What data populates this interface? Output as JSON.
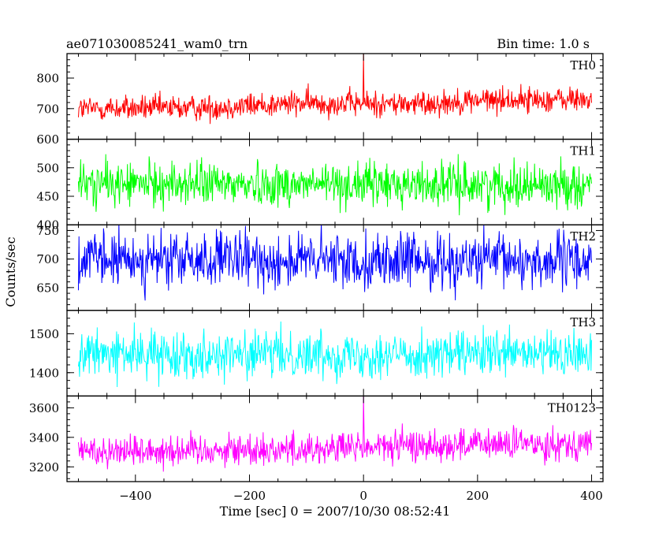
{
  "header": {
    "title": "ae071030085241_wam0_trn",
    "bin_time": "Bin time: 1.0 s"
  },
  "chart_data": {
    "type": "line",
    "xlabel": "Time [sec] 0 = 2007/10/30 08:52:41",
    "ylabel": "Counts/sec",
    "xlim": [
      -520,
      420
    ],
    "x_ticks": [
      -400,
      -200,
      0,
      200,
      400
    ],
    "x_ticklabels": [
      "−400",
      "−200",
      "0",
      "200",
      "400"
    ],
    "x_data_range": [
      -500,
      400
    ],
    "bin_time_s": 1.0,
    "panels": [
      {
        "name": "TH0",
        "color": "#ff0000",
        "ylim": [
          600,
          880
        ],
        "y_ticks": [
          600,
          700,
          800
        ],
        "y_ticklabels": [
          "600",
          "700",
          "800"
        ],
        "trend": [
          [
            -500,
            700
          ],
          [
            -300,
            702
          ],
          [
            -100,
            718
          ],
          [
            100,
            715
          ],
          [
            200,
            728
          ],
          [
            400,
            730
          ]
        ],
        "noise_amplitude": 42,
        "spikes": [
          {
            "x": 0,
            "y": 880
          }
        ]
      },
      {
        "name": "TH1",
        "color": "#00ff00",
        "ylim": [
          400,
          550
        ],
        "y_ticks": [
          400,
          450,
          500
        ],
        "y_ticklabels": [
          "400",
          "450",
          "500"
        ],
        "trend": [
          [
            -500,
            472
          ],
          [
            400,
            470
          ]
        ],
        "noise_amplitude": 38,
        "spikes": []
      },
      {
        "name": "TH2",
        "color": "#0000ff",
        "ylim": [
          610,
          760
        ],
        "y_ticks": [
          650,
          700,
          750
        ],
        "y_ticklabels": [
          "650",
          "700",
          "750"
        ],
        "trend": [
          [
            -500,
            698
          ],
          [
            400,
            696
          ]
        ],
        "noise_amplitude": 48,
        "spikes": []
      },
      {
        "name": "TH3",
        "color": "#00ffff",
        "ylim": [
          1340,
          1560
        ],
        "y_ticks": [
          1400,
          1500
        ],
        "y_ticklabels": [
          "1400",
          "1500"
        ],
        "trend": [
          [
            -500,
            1448
          ],
          [
            400,
            1446
          ]
        ],
        "noise_amplitude": 58,
        "spikes": []
      },
      {
        "name": "TH0123",
        "color": "#ff00ff",
        "ylim": [
          3100,
          3680
        ],
        "y_ticks": [
          3200,
          3400,
          3600
        ],
        "y_ticklabels": [
          "3200",
          "3400",
          "3600"
        ],
        "trend": [
          [
            -500,
            3310
          ],
          [
            -100,
            3320
          ],
          [
            100,
            3345
          ],
          [
            400,
            3360
          ]
        ],
        "noise_amplitude": 110,
        "spikes": [
          {
            "x": 0,
            "y": 3680
          }
        ]
      }
    ]
  }
}
